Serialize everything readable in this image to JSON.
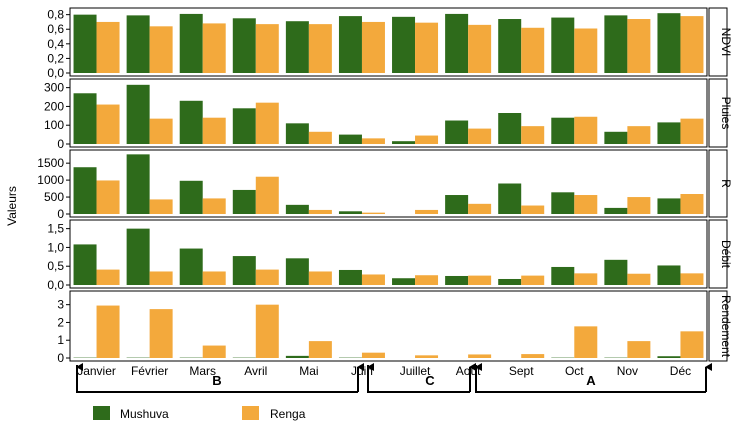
{
  "chart_data": {
    "type": "bar",
    "ylabel": "Valeurs",
    "months": [
      "Janvier",
      "Février",
      "Mars",
      "Avril",
      "Mai",
      "Juin",
      "Juillet",
      "Août",
      "Sept",
      "Oct",
      "Nov",
      "Déc"
    ],
    "legend": [
      {
        "name": "Mushuva",
        "color": "#2e6b1b"
      },
      {
        "name": "Renga",
        "color": "#f3a93c"
      }
    ],
    "series_names": [
      "Mushuva",
      "Renga"
    ],
    "colors": {
      "mushuva": "#2e6b1b",
      "renga": "#f3a93c"
    },
    "panels": [
      {
        "label": "NDVI",
        "ylim": [
          0,
          0.85
        ],
        "ticks": [
          "0,0",
          "0,2",
          "0,4",
          "0,6",
          "0,8"
        ],
        "tick_values": [
          0,
          0.2,
          0.4,
          0.6,
          0.8
        ],
        "mushuva": [
          0.8,
          0.79,
          0.81,
          0.75,
          0.71,
          0.78,
          0.77,
          0.81,
          0.74,
          0.76,
          0.79,
          0.82
        ],
        "renga": [
          0.7,
          0.64,
          0.68,
          0.67,
          0.67,
          0.7,
          0.69,
          0.66,
          0.62,
          0.61,
          0.74,
          0.78
        ]
      },
      {
        "label": "Pluies",
        "ylim": [
          0,
          330
        ],
        "ticks": [
          "0",
          "100",
          "200",
          "300"
        ],
        "tick_values": [
          0,
          100,
          200,
          300
        ],
        "mushuva": [
          270,
          315,
          230,
          190,
          110,
          50,
          15,
          125,
          165,
          140,
          65,
          115
        ],
        "renga": [
          210,
          135,
          140,
          220,
          65,
          30,
          45,
          82,
          95,
          145,
          95,
          135
        ]
      },
      {
        "label": "R",
        "ylim": [
          0,
          1800
        ],
        "ticks": [
          "0",
          "500",
          "1000",
          "1500"
        ],
        "tick_values": [
          0,
          500,
          1000,
          1500
        ],
        "mushuva": [
          1380,
          1760,
          980,
          710,
          270,
          80,
          0,
          560,
          900,
          640,
          180,
          460
        ],
        "renga": [
          990,
          430,
          460,
          1100,
          120,
          40,
          120,
          300,
          250,
          560,
          500,
          590
        ]
      },
      {
        "label": "Débit",
        "ylim": [
          0,
          1.65
        ],
        "ticks": [
          "0,0",
          "0,5",
          "1,0",
          "1,5"
        ],
        "tick_values": [
          0,
          0.5,
          1.0,
          1.5
        ],
        "mushuva": [
          1.08,
          1.5,
          0.97,
          0.77,
          0.71,
          0.4,
          0.18,
          0.24,
          0.16,
          0.48,
          0.67,
          0.52
        ],
        "renga": [
          0.41,
          0.36,
          0.36,
          0.41,
          0.36,
          0.28,
          0.26,
          0.25,
          0.25,
          0.31,
          0.3,
          0.31
        ]
      },
      {
        "label": "Rendement",
        "ylim": [
          0,
          3.6
        ],
        "ticks": [
          "0",
          "1",
          "2",
          "3"
        ],
        "tick_values": [
          0,
          1,
          2,
          3
        ],
        "mushuva": [
          0.02,
          0.02,
          0.02,
          0.02,
          0.12,
          0.02,
          0.0,
          0.0,
          0.0,
          0.02,
          0.02,
          0.1
        ],
        "renga": [
          2.95,
          2.75,
          0.7,
          3.0,
          0.95,
          0.3,
          0.15,
          0.2,
          0.22,
          1.78,
          0.95,
          1.5
        ]
      }
    ],
    "periods": [
      {
        "label": "B",
        "from": "Janvier",
        "to": "Juin"
      },
      {
        "label": "C",
        "from": "Juin",
        "to": "Août"
      },
      {
        "label": "A",
        "from": "Août",
        "to": "Déc"
      }
    ]
  }
}
